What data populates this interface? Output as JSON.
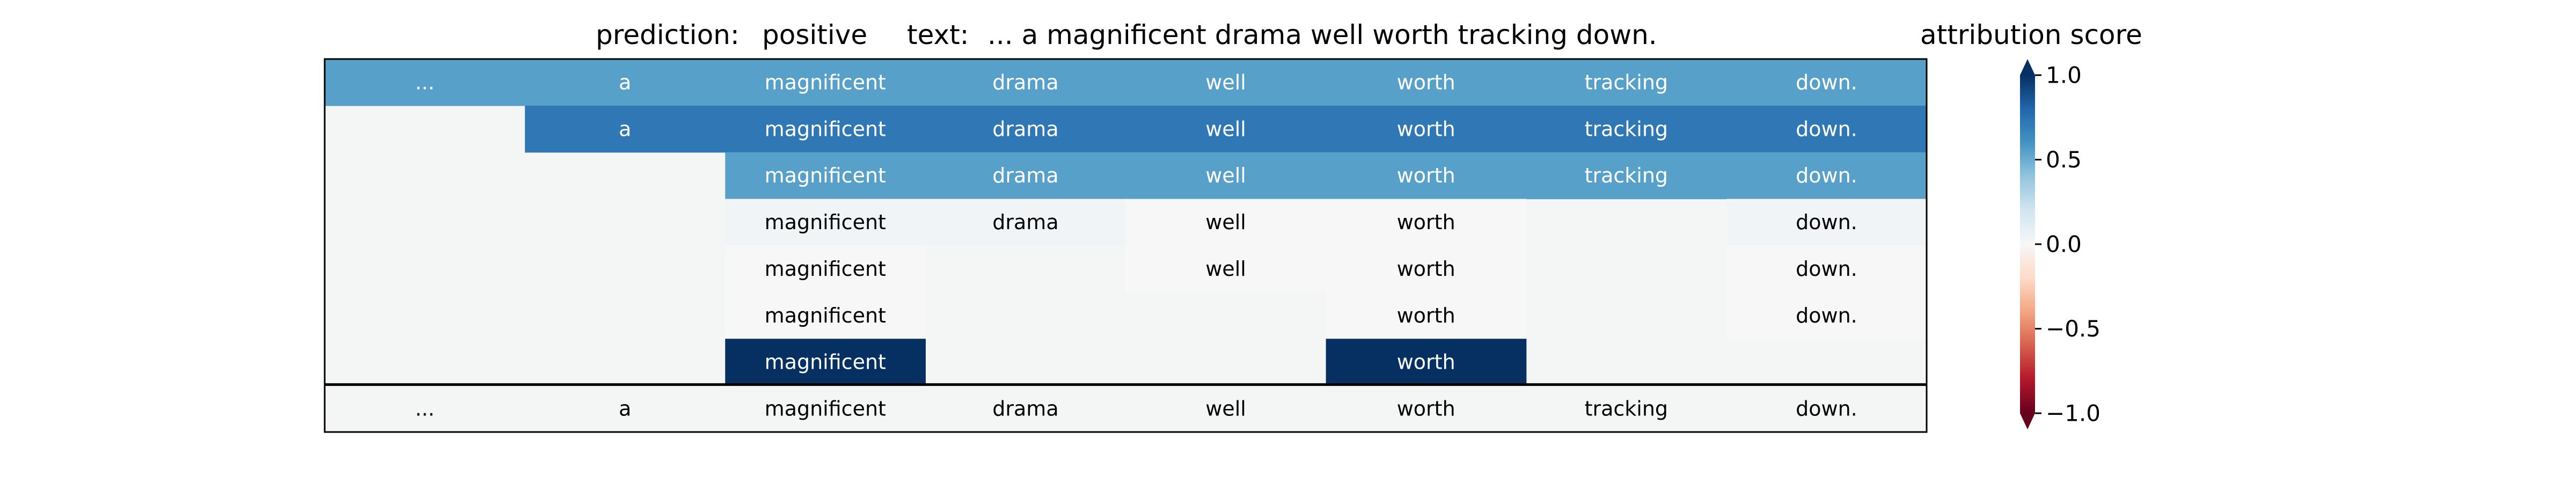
{
  "header": {
    "prediction_prefix": "prediction:",
    "prediction_value": "positive",
    "text_prefix": "text:",
    "text_value": "... a magnificent drama well worth tracking down."
  },
  "chart_data": {
    "type": "heatmap",
    "title": "",
    "tokens": [
      "...",
      "a",
      "magnificent",
      "drama",
      "well",
      "worth",
      "tracking",
      "down."
    ],
    "rows": [
      {
        "start": 0,
        "values": [
          0.55,
          0.55,
          0.55,
          0.55,
          0.55,
          0.55,
          0.55,
          0.55
        ]
      },
      {
        "start": 1,
        "values": [
          0.72,
          0.72,
          0.72,
          0.72,
          0.72,
          0.72,
          0.72
        ]
      },
      {
        "start": 2,
        "values": [
          0.55,
          0.55,
          0.55,
          0.55,
          0.55,
          0.55
        ]
      },
      {
        "start": 2,
        "cells": [
          [
            2,
            0.03
          ],
          [
            3,
            0.03
          ],
          [
            4,
            0.0
          ],
          [
            5,
            0.0
          ],
          [
            7,
            0.03
          ]
        ]
      },
      {
        "start": 2,
        "cells": [
          [
            2,
            0.0
          ],
          [
            4,
            0.0
          ],
          [
            5,
            0.0
          ],
          [
            7,
            0.0
          ]
        ]
      },
      {
        "start": 2,
        "cells": [
          [
            2,
            0.0
          ],
          [
            5,
            0.0
          ],
          [
            7,
            0.0
          ]
        ]
      },
      {
        "start": 2,
        "cells": [
          [
            2,
            1.0
          ],
          [
            5,
            1.0
          ]
        ]
      }
    ],
    "baseline_row": [
      "...",
      "a",
      "magnificent",
      "drama",
      "well",
      "worth",
      "tracking",
      "down."
    ],
    "colorbar": {
      "label": "attribution score",
      "colormap": "RdBu",
      "range": [
        -1.0,
        1.0
      ],
      "ticks": [
        "1.0",
        "0.5",
        "0.0",
        "−0.5",
        "−1.0"
      ],
      "tick_values": [
        1.0,
        0.5,
        0.0,
        -0.5,
        -1.0
      ],
      "extend": "both"
    },
    "background_color": "#f4f6f6",
    "grid": false
  }
}
